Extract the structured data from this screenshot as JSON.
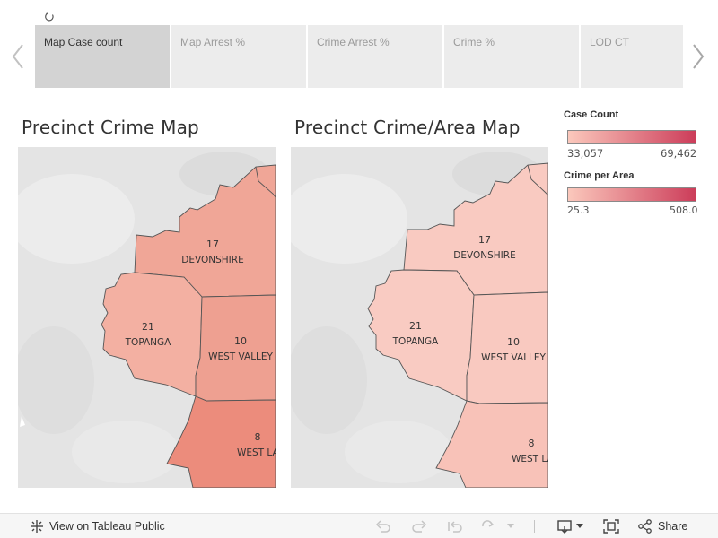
{
  "tabs": [
    {
      "label": "Map Case count",
      "active": true
    },
    {
      "label": "Map Arrest %",
      "active": false
    },
    {
      "label": "Crime Arrest %",
      "active": false
    },
    {
      "label": "Crime %",
      "active": false
    },
    {
      "label": "LOD CT",
      "active": false
    }
  ],
  "maps": {
    "left": {
      "title": "Precinct Crime Map",
      "regions": [
        {
          "number": "17",
          "name": "DEVONSHIRE",
          "color": "#f0a697"
        },
        {
          "number": "21",
          "name": "TOPANGA",
          "color": "#f3b0a2"
        },
        {
          "number": "10",
          "name": "WEST VALLEY",
          "color": "#eea091"
        },
        {
          "number": "8",
          "name": "WEST LA",
          "color": "#ec8c7c"
        }
      ]
    },
    "right": {
      "title": "Precinct Crime/Area Map",
      "regions": [
        {
          "number": "17",
          "name": "DEVONSHIRE",
          "color": "#f9cac1"
        },
        {
          "number": "21",
          "name": "TOPANGA",
          "color": "#f9cbc2"
        },
        {
          "number": "10",
          "name": "WEST VALLEY",
          "color": "#f9c9c0"
        },
        {
          "number": "8",
          "name": "WEST LA",
          "color": "#f8c2b8"
        }
      ]
    }
  },
  "legend": {
    "case_count": {
      "title": "Case Count",
      "min": "33,057",
      "max": "69,462",
      "color_low": "#fbc8bc",
      "color_high": "#cc3d5a"
    },
    "crime_per_area": {
      "title": "Crime per Area",
      "min": "25.3",
      "max": "508.0",
      "color_low": "#fbc8bc",
      "color_high": "#cc3d5a"
    }
  },
  "footer": {
    "view_label": "View on Tableau Public",
    "share_label": "Share"
  }
}
